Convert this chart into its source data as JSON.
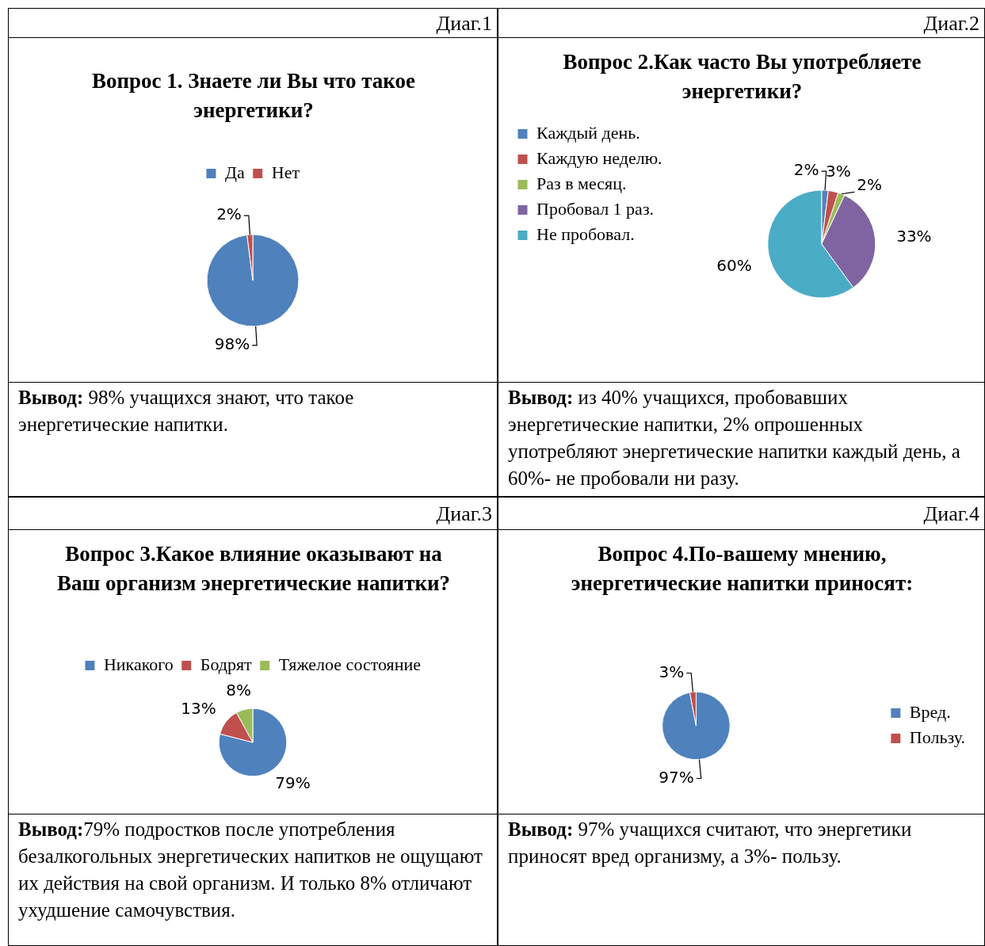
{
  "chart_data": [
    {
      "type": "pie",
      "title": "Вопрос 1. Знаете ли Вы что такое энергетики?",
      "categories": [
        "Да",
        "Нет"
      ],
      "values": [
        98,
        2
      ],
      "colors": [
        "#4f81bd",
        "#c0504d"
      ],
      "value_labels": [
        "98%",
        "2%"
      ],
      "legend": "top",
      "annotations": [
        "Диаг.1",
        "Вывод: 98% учащихся знают, что такое энергетические напитки."
      ]
    },
    {
      "type": "pie",
      "title": "Вопрос 2.Как часто Вы употребляете энергетики?",
      "categories": [
        "Каждый день.",
        "Каждую неделю.",
        "Раз в месяц.",
        "Пробовал 1 раз.",
        "Не пробовал."
      ],
      "values": [
        2,
        3,
        2,
        33,
        60
      ],
      "colors": [
        "#4f81bd",
        "#c0504d",
        "#9bbb59",
        "#8064a2",
        "#4bacc6"
      ],
      "value_labels": [
        "2%",
        "3%",
        "2%",
        "33%",
        "60%"
      ],
      "legend": "top left",
      "annotations": [
        "Диаг.2",
        "Вывод: из 40% учащихся, пробовавших энергетические напитки, 2% опрошенных употребляют энергетические напитки каждый день, а 60%- не пробовали ни разу."
      ]
    },
    {
      "type": "pie",
      "title": "Вопрос 3.Какое влияние оказывают на Ваш организм энергетические напитки?",
      "categories": [
        "Никакого",
        "Бодрят",
        "Тяжелое состояние"
      ],
      "values": [
        79,
        13,
        8
      ],
      "colors": [
        "#4f81bd",
        "#c0504d",
        "#9bbb59"
      ],
      "value_labels": [
        "79%",
        "13%",
        "8%"
      ],
      "legend": "top",
      "annotations": [
        "Диаг.3",
        "Вывод:79% подростков после употребления безалкогольных энергетических напитков не ощущают их действия на свой организм. И только 8% отличают ухудшение самочувствия."
      ]
    },
    {
      "type": "pie",
      "title": "Вопрос 4.По-вашему мнению, энергетические напитки приносят:",
      "categories": [
        "Вред.",
        "Пользу."
      ],
      "values": [
        97,
        3
      ],
      "colors": [
        "#4f81bd",
        "#c0504d"
      ],
      "value_labels": [
        "97%",
        "3%"
      ],
      "legend": "right",
      "annotations": [
        "Диаг.4",
        "Вывод: 97% учащихся считают, что энергетики приносят вред организму, а 3%- пользу."
      ]
    }
  ]
}
